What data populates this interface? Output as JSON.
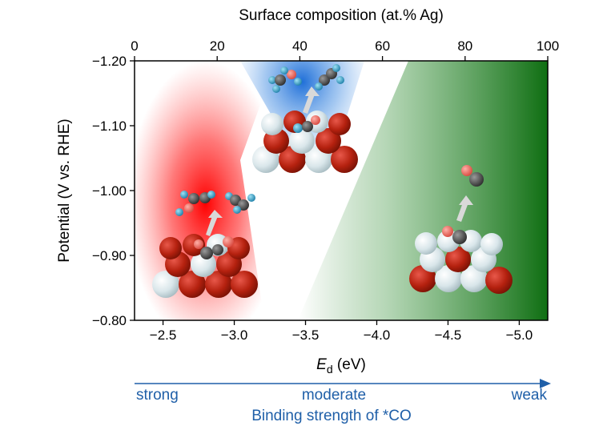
{
  "chart_data": {
    "type": "heatmap",
    "title": "",
    "top_axis": {
      "label": "Surface composition (at.% Ag)",
      "range": [
        0,
        100
      ],
      "ticks": [
        "0",
        "20",
        "40",
        "60",
        "80",
        "100"
      ],
      "tick_values": [
        0,
        20,
        40,
        60,
        80,
        100
      ]
    },
    "x_axis": {
      "label_main": "E",
      "label_sub": "d",
      "label_unit": " (eV)",
      "range": [
        -2.3,
        -5.2
      ],
      "ticks": [
        "−2.5",
        "−3.0",
        "−3.5",
        "−4.0",
        "−4.5",
        "−5.0"
      ],
      "tick_values": [
        -2.5,
        -3.0,
        -3.5,
        -4.0,
        -4.5,
        -5.0
      ]
    },
    "y_axis": {
      "label": "Potential (V vs. RHE)",
      "range": [
        -0.8,
        -1.2
      ],
      "ticks": [
        "−1.20",
        "−1.10",
        "−1.00",
        "−0.90",
        "−0.80"
      ],
      "tick_values": [
        -1.2,
        -1.1,
        -1.0,
        -0.9,
        -0.8
      ]
    },
    "regions": [
      {
        "name": "red",
        "color": "#ff1a1a",
        "center_x": -2.85,
        "description_tag": "C2 products"
      },
      {
        "name": "blue",
        "color": "#1a6fd6",
        "center_x": -3.65,
        "description_tag": "C3 products"
      },
      {
        "name": "green",
        "color": "#157a16",
        "center_x": -5.2,
        "description_tag": "CO"
      }
    ],
    "binding_strength_arrow": {
      "label": "Binding strength of *CO",
      "left": "strong",
      "middle": "moderate",
      "right": "weak",
      "color": "#1f5fa8"
    }
  }
}
